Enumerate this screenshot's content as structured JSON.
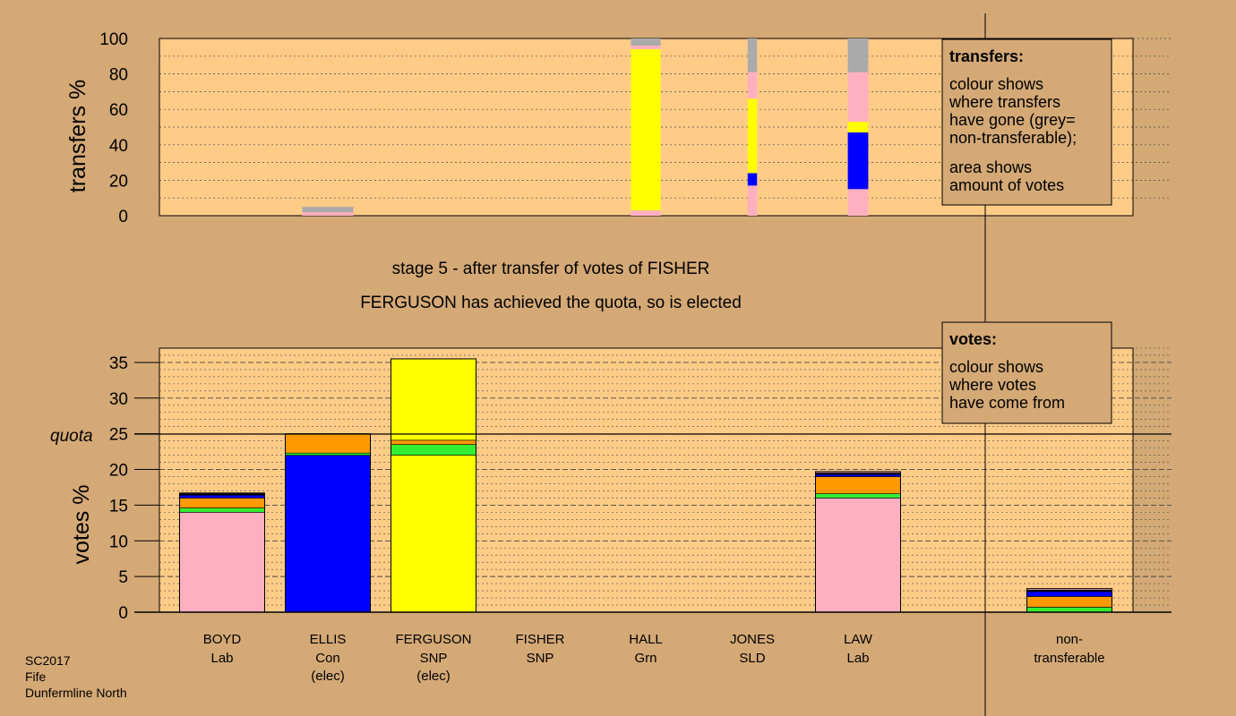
{
  "header": {
    "stage_text": "stage 5 - after transfer of votes of FISHER",
    "elected_text": "FERGUSON has achieved the quota, so is elected"
  },
  "footer": {
    "line1": "SC2017",
    "line2": "Fife",
    "line3": "Dunfermline North"
  },
  "legend_transfers": {
    "title": "transfers:",
    "lines": [
      "colour shows",
      "where transfers",
      "have gone (grey=",
      "non-transferable);"
    ],
    "lines2": [
      "area shows",
      "amount of votes"
    ]
  },
  "legend_votes": {
    "title": "votes:",
    "lines": [
      "colour shows",
      "where votes",
      "have come from"
    ]
  },
  "colors": {
    "background": "#d4a976",
    "plot": "#ffcc88",
    "Lab": "#ffb0c0",
    "Con": "#0000ff",
    "SNP": "#ffff00",
    "Grn": "#33ee33",
    "SLD": "#ff9900",
    "nontransferable": "#aaaaaa",
    "other": "#000000"
  },
  "chart_data": [
    {
      "type": "bar",
      "title": "",
      "ylabel": "transfers %",
      "ylim": [
        0,
        100
      ],
      "yticks": [
        0,
        20,
        40,
        60,
        80,
        100
      ],
      "grid": true,
      "legend": "top-right",
      "columns": [
        {
          "name": "BOYD",
          "width": 0.6,
          "segments": [
            {
              "party": "Lab",
              "value": 2
            },
            {
              "party": "nontransferable",
              "value": 3
            }
          ]
        },
        {
          "name": "ELLIS",
          "width": 0,
          "segments": []
        },
        {
          "name": "FERGUSON",
          "width": 0.35,
          "segments": [
            {
              "party": "Lab",
              "value": 3
            },
            {
              "party": "SNP",
              "value": 91
            },
            {
              "party": "Lab",
              "value": 2
            },
            {
              "party": "nontransferable",
              "value": 4
            }
          ]
        },
        {
          "name": "FISHER",
          "width": 0.11,
          "segments": [
            {
              "party": "Lab",
              "value": 17
            },
            {
              "party": "Con",
              "value": 7
            },
            {
              "party": "SNP",
              "value": 42
            },
            {
              "party": "Lab",
              "value": 15
            },
            {
              "party": "nontransferable",
              "value": 19
            }
          ]
        },
        {
          "name": "HALL",
          "width": 0.24,
          "segments": [
            {
              "party": "Lab",
              "value": 15
            },
            {
              "party": "Con",
              "value": 32
            },
            {
              "party": "SNP",
              "value": 6
            },
            {
              "party": "Lab",
              "value": 28
            },
            {
              "party": "nontransferable",
              "value": 19
            }
          ]
        },
        {
          "name": "JONES",
          "width": 0,
          "segments": []
        }
      ]
    },
    {
      "type": "bar",
      "title": "",
      "ylabel": "votes %",
      "ylim": [
        0,
        37
      ],
      "yticks": [
        0,
        5,
        10,
        15,
        20,
        25,
        30,
        35
      ],
      "quota": 25,
      "quota_label": "quota",
      "grid": true,
      "legend": "top-right",
      "candidates": [
        {
          "name": "BOYD",
          "party": "Lab",
          "note": "",
          "segments": [
            {
              "party": "Lab",
              "value": 14.0
            },
            {
              "party": "Grn",
              "value": 0.6
            },
            {
              "party": "SLD",
              "value": 1.4
            },
            {
              "party": "Con",
              "value": 0.4
            },
            {
              "party": "other",
              "value": 0.2
            },
            {
              "party": "Lab",
              "value": 0.1
            }
          ]
        },
        {
          "name": "ELLIS",
          "party": "Con",
          "note": "(elec)",
          "segments": [
            {
              "party": "Con",
              "value": 22.0
            },
            {
              "party": "Grn",
              "value": 0.3
            },
            {
              "party": "SLD",
              "value": 2.7
            }
          ]
        },
        {
          "name": "FERGUSON",
          "party": "SNP",
          "note": "(elec)",
          "segments": [
            {
              "party": "SNP",
              "value": 22.0
            },
            {
              "party": "Grn",
              "value": 1.5
            },
            {
              "party": "SLD",
              "value": 0.6
            },
            {
              "party": "SNP",
              "value": 11.4
            }
          ]
        },
        {
          "name": "FISHER",
          "party": "SNP",
          "note": "",
          "segments": []
        },
        {
          "name": "HALL",
          "party": "Grn",
          "note": "",
          "segments": []
        },
        {
          "name": "JONES",
          "party": "SLD",
          "note": "",
          "segments": []
        },
        {
          "name": "LAW",
          "party": "Lab",
          "note": "",
          "segments": [
            {
              "party": "Lab",
              "value": 16.0
            },
            {
              "party": "Grn",
              "value": 0.6
            },
            {
              "party": "SLD",
              "value": 2.4
            },
            {
              "party": "Con",
              "value": 0.3
            },
            {
              "party": "other",
              "value": 0.2
            },
            {
              "party": "Lab",
              "value": 0.2
            }
          ]
        },
        {
          "name": "non-",
          "party": "transferable",
          "note": "",
          "segments": [
            {
              "party": "Grn",
              "value": 0.7
            },
            {
              "party": "SLD",
              "value": 1.5
            },
            {
              "party": "Con",
              "value": 0.7
            },
            {
              "party": "other",
              "value": 0.2
            },
            {
              "party": "Lab",
              "value": 0.2
            }
          ]
        }
      ]
    }
  ]
}
